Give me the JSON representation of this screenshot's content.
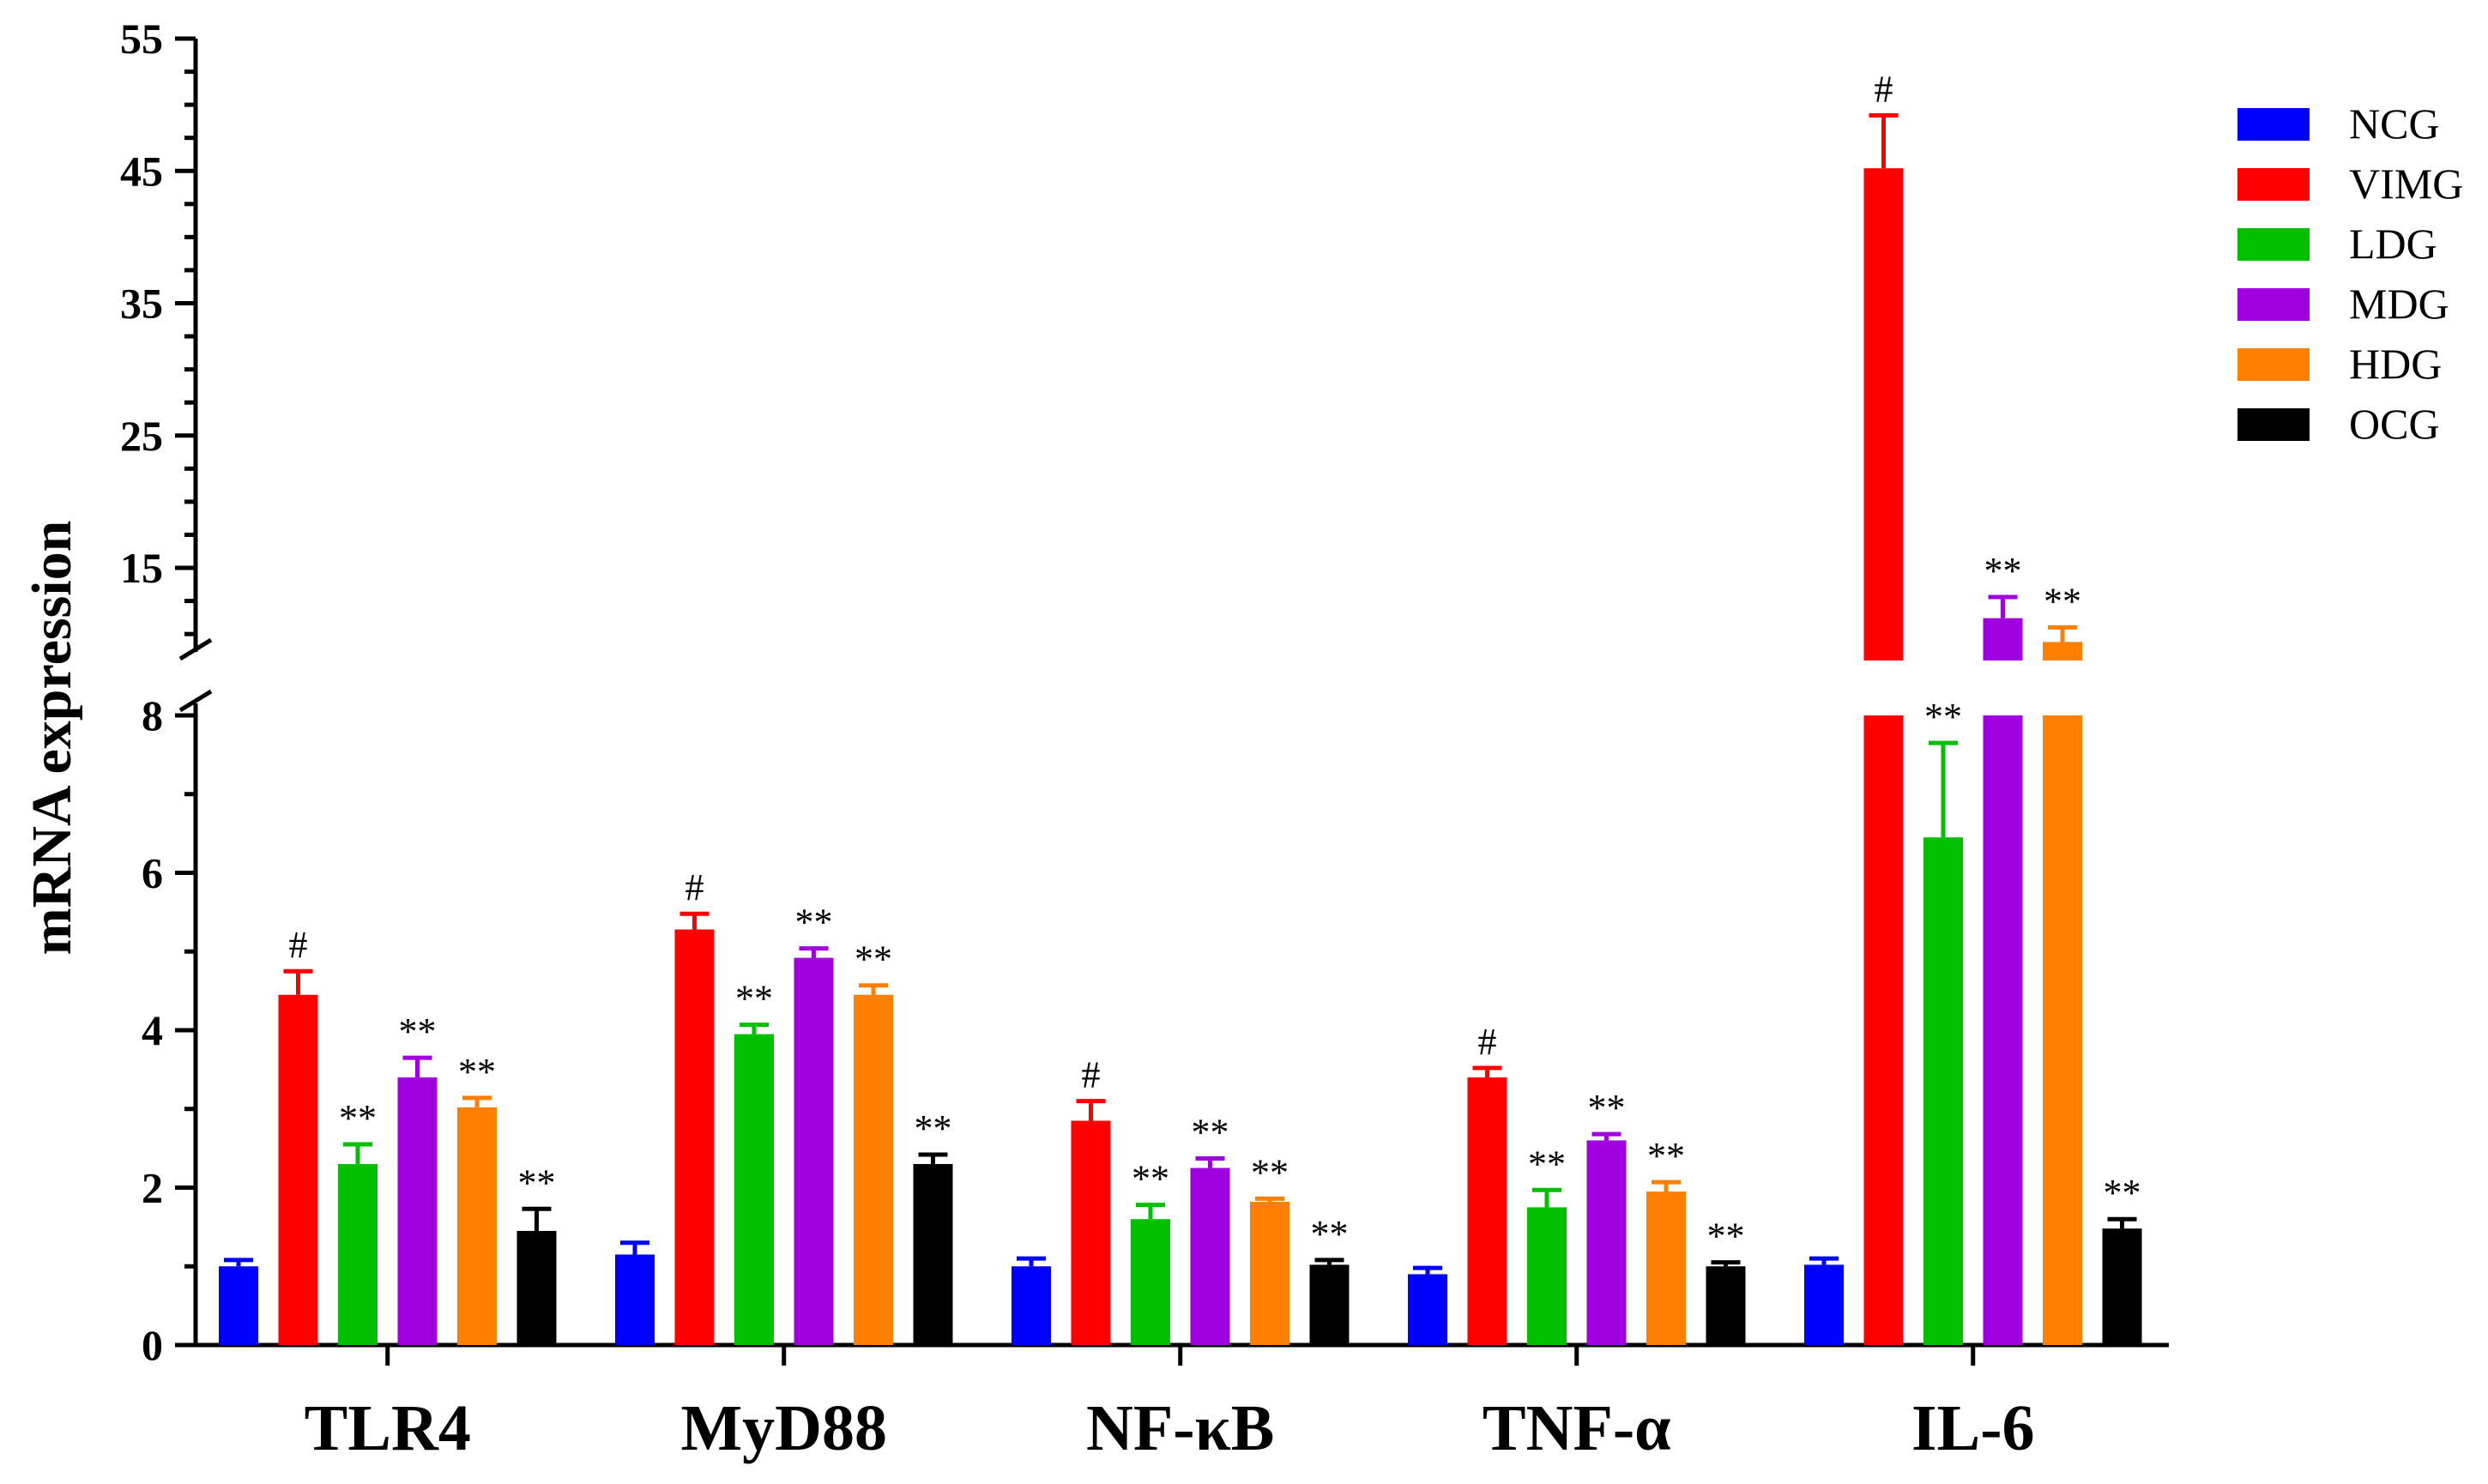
{
  "chart_data": {
    "type": "bar",
    "title": "",
    "xlabel": "",
    "ylabel": "mRNA expression",
    "categories": [
      "TLR4",
      "MyD88",
      "NF-κB",
      "TNF-α",
      "IL-6"
    ],
    "ylim": [
      0,
      55
    ],
    "axis_break": {
      "lower_range": [
        0,
        8
      ],
      "upper_range": [
        8,
        55
      ]
    },
    "lower_ticks": [
      0,
      2,
      4,
      6,
      8
    ],
    "upper_ticks": [
      15,
      25,
      35,
      45,
      55
    ],
    "legend_position": "top-right",
    "series": [
      {
        "name": "NCG",
        "color": "#0000ff",
        "values": [
          1.0,
          1.15,
          1.0,
          0.9,
          1.02
        ],
        "errors": [
          0.08,
          0.15,
          0.1,
          0.08,
          0.08
        ],
        "annotations": [
          "",
          "",
          "",
          "",
          ""
        ]
      },
      {
        "name": "VIMG",
        "color": "#ff0000",
        "values": [
          4.45,
          5.28,
          2.85,
          3.4,
          45.2
        ],
        "errors": [
          0.3,
          0.2,
          0.25,
          0.12,
          4.0
        ],
        "annotations": [
          "#",
          "#",
          "#",
          "#",
          "#"
        ]
      },
      {
        "name": "LDG",
        "color": "#00c000",
        "values": [
          2.3,
          3.95,
          1.6,
          1.75,
          6.45
        ],
        "errors": [
          0.25,
          0.12,
          0.18,
          0.22,
          1.2
        ],
        "annotations": [
          "**",
          "**",
          "**",
          "**",
          "**"
        ]
      },
      {
        "name": "MDG",
        "color": "#a000e0",
        "values": [
          3.4,
          4.92,
          2.25,
          2.6,
          11.2
        ],
        "errors": [
          0.25,
          0.12,
          0.12,
          0.08,
          1.6
        ],
        "annotations": [
          "**",
          "**",
          "**",
          "**",
          "**"
        ]
      },
      {
        "name": "HDG",
        "color": "#ff8000",
        "values": [
          3.02,
          4.45,
          1.82,
          1.95,
          9.4
        ],
        "errors": [
          0.12,
          0.12,
          0.04,
          0.12,
          1.1
        ],
        "annotations": [
          "**",
          "**",
          "**",
          "**",
          "**"
        ]
      },
      {
        "name": "OCG",
        "color": "#000000",
        "values": [
          1.45,
          2.3,
          1.02,
          1.0,
          1.48
        ],
        "errors": [
          0.28,
          0.12,
          0.06,
          0.05,
          0.12
        ],
        "annotations": [
          "**",
          "**",
          "**",
          "**",
          "**"
        ]
      }
    ]
  }
}
